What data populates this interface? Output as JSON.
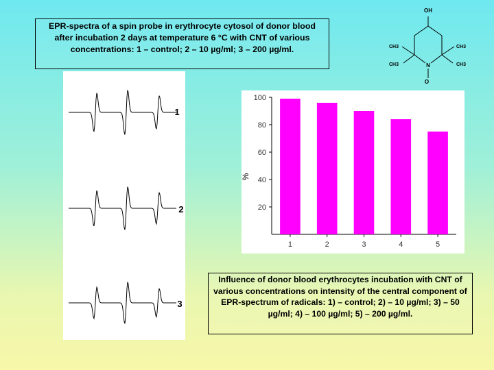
{
  "captions": {
    "top": "EPR-spectra of a spin probe in erythrocyte cytosol of donor blood after incubation 2 days at temperature 6 °C with CNT of various concentrations: 1 – control; 2 – 10 µg/ml; 3 – 200 µg/ml.",
    "bottom": "Influence of donor blood erythrocytes incubation with CNT of various concentrations on intensity of the central component of EPR-spectrum of radicals: 1) – control; 2) – 10 µg/ml; 3) – 50 µg/ml; 4) – 100 µg/ml; 5) – 200 µg/ml."
  },
  "spectra": {
    "labels": [
      "1",
      "2",
      "3"
    ],
    "line_color": "#000000"
  },
  "molecule": {
    "labels": {
      "oh": "OH",
      "ch3_top_left": "CH3",
      "ch3_top_right": "CH3",
      "ch3_bottom_left": "CH3",
      "ch3_bottom_right": "CH3",
      "nitrogen": "N",
      "oxygen": "O"
    }
  },
  "chart_data": {
    "type": "bar",
    "categories": [
      "1",
      "2",
      "3",
      "4",
      "5"
    ],
    "values": [
      99,
      96,
      90,
      84,
      75
    ],
    "title": "",
    "xlabel": "",
    "ylabel": "%",
    "ylim": [
      0,
      100
    ],
    "yticks": [
      20,
      40,
      60,
      80,
      100
    ],
    "grid": false,
    "bar_color": "#ff00ff",
    "background": "#ffffff"
  }
}
